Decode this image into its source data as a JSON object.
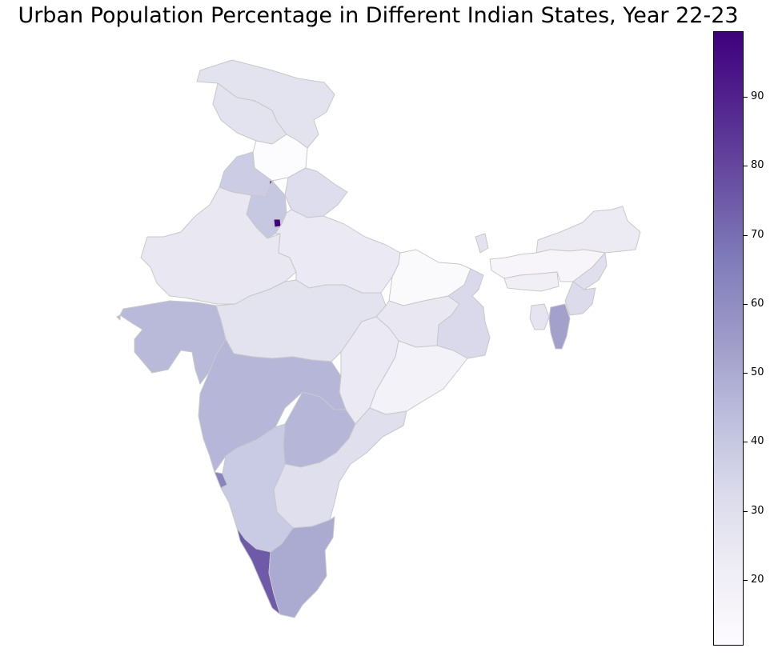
{
  "title": "Urban Population Percentage in Different Indian States, Year 22-23",
  "colorbar": {
    "cmap": "Purples",
    "min": 10.5,
    "max": 99.5,
    "ticks": [
      "20",
      "30",
      "40",
      "50",
      "60",
      "70",
      "80",
      "90"
    ],
    "stops": [
      "#fcfbfd",
      "#efedf5",
      "#dadaeb",
      "#bcbddc",
      "#9e9ac8",
      "#807dba",
      "#6a51a3",
      "#54278f",
      "#3f007d"
    ]
  },
  "chart_data": {
    "type": "choropleth",
    "title": "Urban Population Percentage in Different Indian States, Year 22-23",
    "value_range": [
      10.5,
      99.5
    ],
    "colorbar_ticks": [
      20,
      30,
      40,
      50,
      60,
      70,
      80,
      90
    ],
    "note": "State names are not printed on the map; values are read from fill colors against the colorbar.",
    "regions": [
      {
        "id": "jammu-kashmir",
        "value": 28
      },
      {
        "id": "ladakh",
        "value": 28
      },
      {
        "id": "himachal-pradesh",
        "value": 10.5
      },
      {
        "id": "punjab",
        "value": 38
      },
      {
        "id": "chandigarh",
        "value": 97
      },
      {
        "id": "uttarakhand",
        "value": 31
      },
      {
        "id": "haryana",
        "value": 40
      },
      {
        "id": "delhi",
        "value": 99
      },
      {
        "id": "rajasthan",
        "value": 25
      },
      {
        "id": "uttar-pradesh",
        "value": 24
      },
      {
        "id": "bihar",
        "value": 12
      },
      {
        "id": "sikkim",
        "value": 28
      },
      {
        "id": "gujarat",
        "value": 45
      },
      {
        "id": "madhya-pradesh",
        "value": 28
      },
      {
        "id": "jharkhand",
        "value": 25
      },
      {
        "id": "west-bengal",
        "value": 33
      },
      {
        "id": "chhattisgarh",
        "value": 24
      },
      {
        "id": "odisha",
        "value": 18
      },
      {
        "id": "maharashtra",
        "value": 46
      },
      {
        "id": "telangana",
        "value": 46
      },
      {
        "id": "andhra-pradesh",
        "value": 30
      },
      {
        "id": "goa",
        "value": 63
      },
      {
        "id": "karnataka",
        "value": 39
      },
      {
        "id": "kerala",
        "value": 75
      },
      {
        "id": "tamil-nadu",
        "value": 50
      },
      {
        "id": "arunachal-pradesh",
        "value": 23
      },
      {
        "id": "assam",
        "value": 15
      },
      {
        "id": "nagaland",
        "value": 30
      },
      {
        "id": "manipur",
        "value": 32
      },
      {
        "id": "mizoram",
        "value": 53
      },
      {
        "id": "tripura",
        "value": 27
      },
      {
        "id": "meghalaya",
        "value": 20
      }
    ]
  }
}
